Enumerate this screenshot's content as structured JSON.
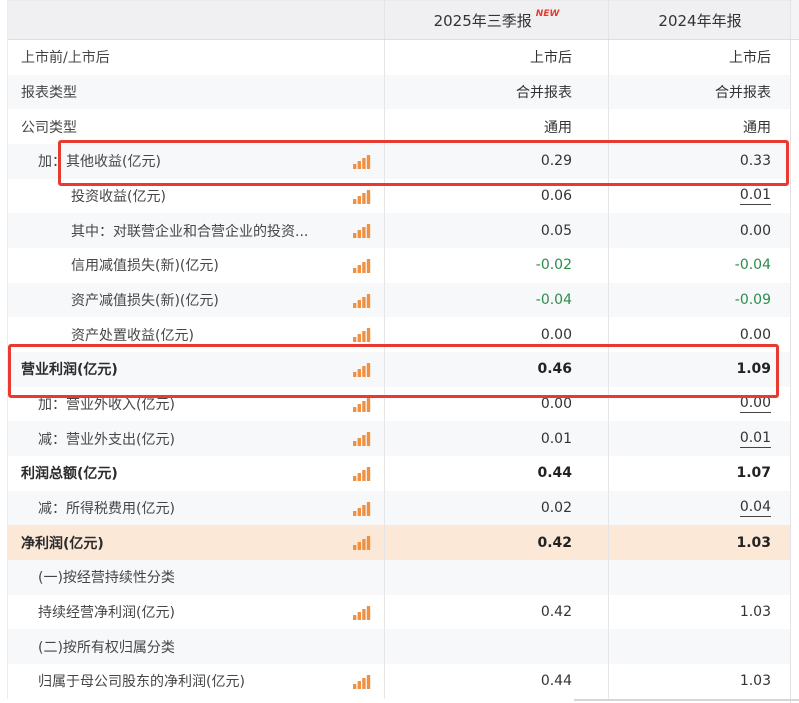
{
  "colors": {
    "accent_orange": "#ef9143",
    "annotation_red": "#e83a30",
    "net_profit_row_bg": "#fbe8d7",
    "negative_value_green": "#2d8c4b",
    "header_bg": "#f0eff2"
  },
  "header": {
    "period_1": "2025年三季报",
    "period_1_badge": "NEW",
    "period_2": "2024年年报"
  },
  "icons": {
    "bar_chart": "bar-chart-icon"
  },
  "rows": [
    {
      "label": "上市前/上市后",
      "indent": "flush",
      "icon": false,
      "v1": "上市后",
      "v2": "上市后"
    },
    {
      "label": "报表类型",
      "indent": "flush",
      "icon": false,
      "v1": "合并报表",
      "v2": "合并报表"
    },
    {
      "label": "公司类型",
      "indent": "flush",
      "icon": false,
      "v1": "通用",
      "v2": "通用"
    },
    {
      "prefix": "加：",
      "label": "其他收益(亿元)",
      "indent": "sub",
      "icon": true,
      "v1": "0.29",
      "v2": "0.33",
      "annotated": true
    },
    {
      "label": "投资收益(亿元)",
      "indent": "item",
      "icon": true,
      "v1": "0.06",
      "v2": "0.01",
      "u2": true
    },
    {
      "label": "其中：对联营企业和合营企业的投资...",
      "indent": "item",
      "icon": true,
      "v1": "0.05",
      "v2": "0.00"
    },
    {
      "label": "信用减值损失(新)(亿元)",
      "indent": "item",
      "icon": true,
      "v1": "-0.02",
      "v2": "-0.04",
      "neg": true
    },
    {
      "label": "资产减值损失(新)(亿元)",
      "indent": "item",
      "icon": true,
      "v1": "-0.04",
      "v2": "-0.09",
      "neg": true
    },
    {
      "label": "资产处置收益(亿元)",
      "indent": "item",
      "icon": true,
      "v1": "0.00",
      "v2": "0.00"
    },
    {
      "label": "营业利润(亿元)",
      "indent": "flush",
      "bold": true,
      "icon": true,
      "v1": "0.46",
      "v2": "1.09",
      "annotated": true
    },
    {
      "prefix": "加：",
      "label": "营业外收入(亿元)",
      "indent": "sub",
      "icon": true,
      "v1": "0.00",
      "v2": "0.00",
      "u2": true
    },
    {
      "prefix": "减：",
      "label": "营业外支出(亿元)",
      "indent": "sub",
      "icon": true,
      "v1": "0.01",
      "v2": "0.01",
      "u2": true
    },
    {
      "label": "利润总额(亿元)",
      "indent": "flush",
      "bold": true,
      "icon": true,
      "v1": "0.44",
      "v2": "1.07"
    },
    {
      "prefix": "减：",
      "label": "所得税费用(亿元)",
      "indent": "sub",
      "icon": true,
      "v1": "0.02",
      "v2": "0.04",
      "u2": true
    },
    {
      "label": "净利润(亿元)",
      "indent": "flush",
      "bold": true,
      "icon": true,
      "v1": "0.42",
      "v2": "1.03",
      "peach": true
    },
    {
      "label": "(一)按经营持续性分类",
      "indent": "sub",
      "icon": false,
      "v1": "",
      "v2": ""
    },
    {
      "label": "持续经营净利润(亿元)",
      "indent": "sub",
      "icon": true,
      "v1": "0.42",
      "v2": "1.03"
    },
    {
      "label": "(二)按所有权归属分类",
      "indent": "sub",
      "icon": false,
      "v1": "",
      "v2": ""
    },
    {
      "label": "归属于母公司股东的净利润(亿元)",
      "indent": "sub",
      "icon": true,
      "v1": "0.44",
      "v2": "1.03"
    }
  ]
}
